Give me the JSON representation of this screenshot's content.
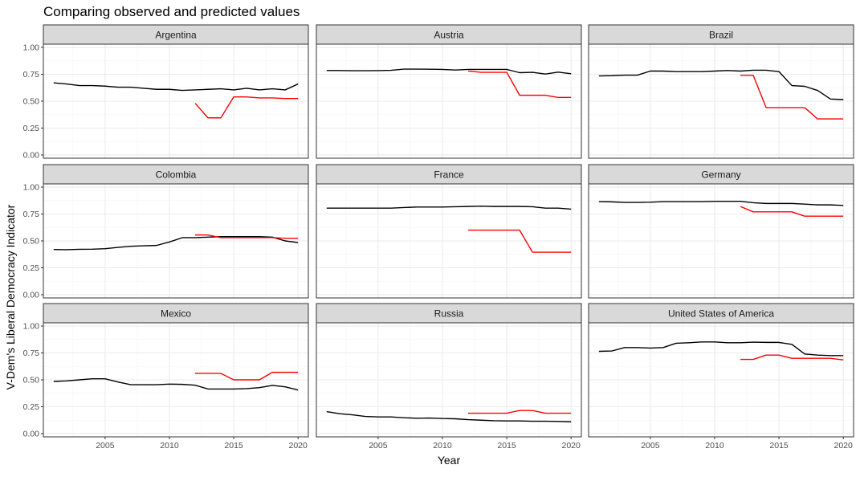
{
  "chart_data": {
    "type": "line",
    "title": "Comparing observed and predicted values",
    "xlabel": "Year",
    "ylabel": "V-Dem's Liberal Democracy Indicator",
    "xlim": [
      2000.2,
      2020.8
    ],
    "ylim": [
      -0.03,
      1.03
    ],
    "x_ticks": [
      2005,
      2010,
      2015,
      2020
    ],
    "x_tick_labels": [
      "2005",
      "2010",
      "2015",
      "2020"
    ],
    "y_ticks": [
      0,
      0.25,
      0.5,
      0.75,
      1
    ],
    "y_tick_labels": [
      "0.00",
      "0.25",
      "0.50",
      "0.75",
      "1.00"
    ],
    "grid": true,
    "legend": "none",
    "colors": {
      "observed": "#000000",
      "predicted": "#ff0000",
      "strip_fill": "#d9d9d9",
      "grid": "#ebebeb",
      "border": "#333333"
    },
    "series_keys": [
      "observed",
      "predicted"
    ],
    "panels": [
      {
        "label": "Argentina",
        "observed": {
          "x": [
            2001,
            2002,
            2003,
            2004,
            2005,
            2006,
            2007,
            2008,
            2009,
            2010,
            2011,
            2012,
            2013,
            2014,
            2015,
            2016,
            2017,
            2018,
            2019,
            2020
          ],
          "y": [
            0.67,
            0.66,
            0.645,
            0.645,
            0.64,
            0.63,
            0.63,
            0.62,
            0.61,
            0.61,
            0.6,
            0.605,
            0.61,
            0.615,
            0.605,
            0.62,
            0.605,
            0.615,
            0.605,
            0.66
          ]
        },
        "predicted": {
          "x": [
            2012,
            2013,
            2014,
            2015,
            2016,
            2017,
            2018,
            2019,
            2020
          ],
          "y": [
            0.48,
            0.345,
            0.345,
            0.54,
            0.54,
            0.53,
            0.53,
            0.525,
            0.525
          ]
        }
      },
      {
        "label": "Austria",
        "observed": {
          "x": [
            2001,
            2002,
            2003,
            2004,
            2005,
            2006,
            2007,
            2008,
            2009,
            2010,
            2011,
            2012,
            2013,
            2014,
            2015,
            2016,
            2017,
            2018,
            2019,
            2020
          ],
          "y": [
            0.785,
            0.785,
            0.783,
            0.783,
            0.784,
            0.787,
            0.798,
            0.798,
            0.797,
            0.795,
            0.79,
            0.795,
            0.795,
            0.795,
            0.795,
            0.765,
            0.768,
            0.752,
            0.77,
            0.755
          ]
        },
        "predicted": {
          "x": [
            2012,
            2013,
            2014,
            2015,
            2016,
            2017,
            2018,
            2019,
            2020
          ],
          "y": [
            0.78,
            0.768,
            0.768,
            0.768,
            0.555,
            0.555,
            0.555,
            0.535,
            0.535
          ]
        }
      },
      {
        "label": "Brazil",
        "observed": {
          "x": [
            2001,
            2002,
            2003,
            2004,
            2005,
            2006,
            2007,
            2008,
            2009,
            2010,
            2011,
            2012,
            2013,
            2014,
            2015,
            2016,
            2017,
            2018,
            2019,
            2020
          ],
          "y": [
            0.735,
            0.737,
            0.742,
            0.742,
            0.78,
            0.78,
            0.775,
            0.775,
            0.775,
            0.78,
            0.785,
            0.78,
            0.788,
            0.788,
            0.775,
            0.645,
            0.638,
            0.6,
            0.52,
            0.515
          ]
        },
        "predicted": {
          "x": [
            2012,
            2013,
            2014,
            2015,
            2016,
            2017,
            2018,
            2019,
            2020
          ],
          "y": [
            0.74,
            0.74,
            0.44,
            0.44,
            0.44,
            0.44,
            0.335,
            0.335,
            0.335
          ]
        }
      },
      {
        "label": "Colombia",
        "observed": {
          "x": [
            2001,
            2002,
            2003,
            2004,
            2005,
            2006,
            2007,
            2008,
            2009,
            2010,
            2011,
            2012,
            2013,
            2014,
            2015,
            2016,
            2017,
            2018,
            2019,
            2020
          ],
          "y": [
            0.42,
            0.418,
            0.422,
            0.423,
            0.428,
            0.44,
            0.45,
            0.455,
            0.458,
            0.49,
            0.53,
            0.53,
            0.535,
            0.54,
            0.54,
            0.54,
            0.54,
            0.535,
            0.5,
            0.485
          ]
        },
        "predicted": {
          "x": [
            2012,
            2013,
            2014,
            2015,
            2016,
            2017,
            2018,
            2019,
            2020
          ],
          "y": [
            0.555,
            0.555,
            0.53,
            0.53,
            0.53,
            0.53,
            0.53,
            0.525,
            0.525
          ]
        }
      },
      {
        "label": "France",
        "observed": {
          "x": [
            2001,
            2002,
            2003,
            2004,
            2005,
            2006,
            2007,
            2008,
            2009,
            2010,
            2011,
            2012,
            2013,
            2014,
            2015,
            2016,
            2017,
            2018,
            2019,
            2020
          ],
          "y": [
            0.805,
            0.805,
            0.805,
            0.805,
            0.805,
            0.805,
            0.81,
            0.815,
            0.815,
            0.815,
            0.818,
            0.82,
            0.823,
            0.82,
            0.82,
            0.82,
            0.818,
            0.805,
            0.805,
            0.795
          ]
        },
        "predicted": {
          "x": [
            2012,
            2013,
            2014,
            2015,
            2016,
            2017,
            2018,
            2019,
            2020
          ],
          "y": [
            0.6,
            0.6,
            0.6,
            0.6,
            0.6,
            0.395,
            0.395,
            0.395,
            0.395
          ]
        }
      },
      {
        "label": "Germany",
        "observed": {
          "x": [
            2001,
            2002,
            2003,
            2004,
            2005,
            2006,
            2007,
            2008,
            2009,
            2010,
            2011,
            2012,
            2013,
            2014,
            2015,
            2016,
            2017,
            2018,
            2019,
            2020
          ],
          "y": [
            0.865,
            0.863,
            0.858,
            0.858,
            0.86,
            0.865,
            0.865,
            0.865,
            0.865,
            0.868,
            0.868,
            0.868,
            0.855,
            0.848,
            0.848,
            0.848,
            0.842,
            0.835,
            0.835,
            0.83
          ]
        },
        "predicted": {
          "x": [
            2012,
            2013,
            2014,
            2015,
            2016,
            2017,
            2018,
            2019,
            2020
          ],
          "y": [
            0.82,
            0.77,
            0.77,
            0.77,
            0.77,
            0.73,
            0.73,
            0.73,
            0.73
          ]
        }
      },
      {
        "label": "Mexico",
        "observed": {
          "x": [
            2001,
            2002,
            2003,
            2004,
            2005,
            2006,
            2007,
            2008,
            2009,
            2010,
            2011,
            2012,
            2013,
            2014,
            2015,
            2016,
            2017,
            2018,
            2019,
            2020
          ],
          "y": [
            0.485,
            0.49,
            0.5,
            0.51,
            0.51,
            0.48,
            0.455,
            0.455,
            0.455,
            0.46,
            0.458,
            0.45,
            0.415,
            0.415,
            0.415,
            0.418,
            0.428,
            0.448,
            0.435,
            0.405
          ]
        },
        "predicted": {
          "x": [
            2012,
            2013,
            2014,
            2015,
            2016,
            2017,
            2018,
            2019,
            2020
          ],
          "y": [
            0.56,
            0.56,
            0.56,
            0.5,
            0.5,
            0.5,
            0.57,
            0.57,
            0.57
          ]
        }
      },
      {
        "label": "Russia",
        "observed": {
          "x": [
            2001,
            2002,
            2003,
            2004,
            2005,
            2006,
            2007,
            2008,
            2009,
            2010,
            2011,
            2012,
            2013,
            2014,
            2015,
            2016,
            2017,
            2018,
            2019,
            2020
          ],
          "y": [
            0.205,
            0.185,
            0.175,
            0.16,
            0.155,
            0.155,
            0.148,
            0.143,
            0.145,
            0.14,
            0.138,
            0.13,
            0.125,
            0.12,
            0.118,
            0.118,
            0.115,
            0.115,
            0.113,
            0.11
          ]
        },
        "predicted": {
          "x": [
            2012,
            2013,
            2014,
            2015,
            2016,
            2017,
            2018,
            2019,
            2020
          ],
          "y": [
            0.19,
            0.19,
            0.19,
            0.19,
            0.215,
            0.215,
            0.19,
            0.19,
            0.19
          ]
        }
      },
      {
        "label": "United States of America",
        "observed": {
          "x": [
            2001,
            2002,
            2003,
            2004,
            2005,
            2006,
            2007,
            2008,
            2009,
            2010,
            2011,
            2012,
            2013,
            2014,
            2015,
            2016,
            2017,
            2018,
            2019,
            2020
          ],
          "y": [
            0.765,
            0.768,
            0.8,
            0.8,
            0.795,
            0.8,
            0.84,
            0.845,
            0.852,
            0.852,
            0.845,
            0.845,
            0.85,
            0.848,
            0.848,
            0.83,
            0.74,
            0.73,
            0.725,
            0.725
          ]
        },
        "predicted": {
          "x": [
            2012,
            2013,
            2014,
            2015,
            2016,
            2017,
            2018,
            2019,
            2020
          ],
          "y": [
            0.69,
            0.69,
            0.73,
            0.73,
            0.7,
            0.7,
            0.7,
            0.7,
            0.685
          ]
        }
      }
    ]
  }
}
